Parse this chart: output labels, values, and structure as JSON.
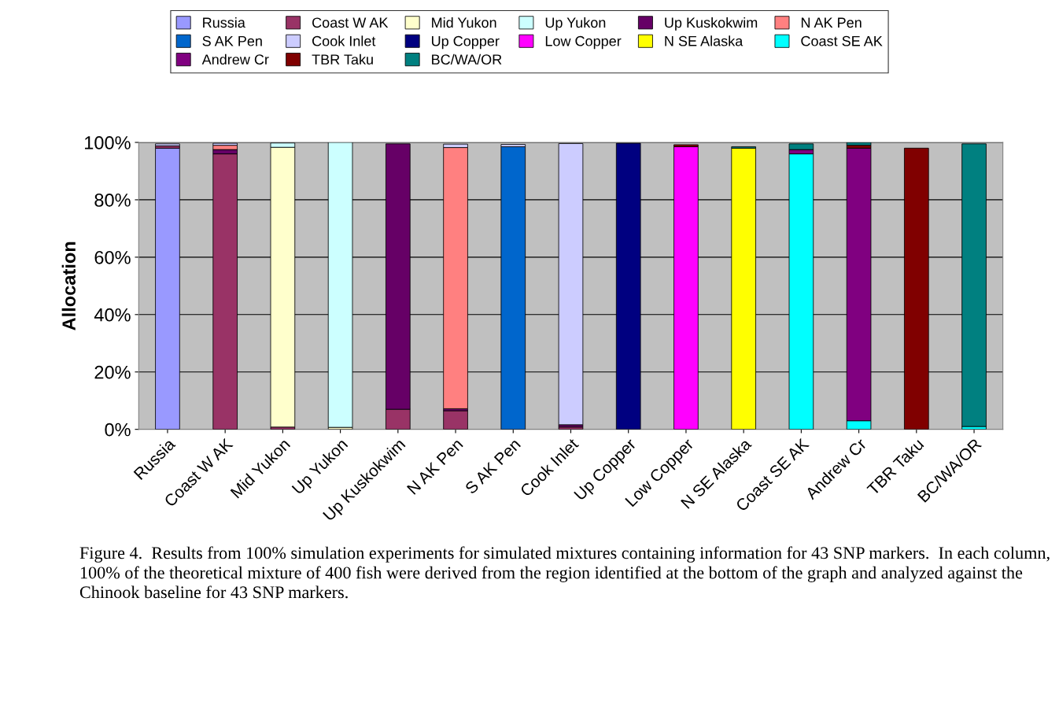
{
  "chart_data": {
    "type": "bar",
    "stacked": true,
    "ylabel": "Allocation",
    "categories": [
      "Russia",
      "Coast W AK",
      "Mid Yukon",
      "Up Yukon",
      "Up Kuskokwim",
      "N AK Pen",
      "S AK Pen",
      "Cook Inlet",
      "Up Copper",
      "Low Copper",
      "N SE Alaska",
      "Coast SE AK",
      "Andrew Cr",
      "TBR Taku",
      "BC/WA/OR"
    ],
    "series": [
      {
        "name": "Russia",
        "color": "#9999ff",
        "values": [
          98,
          0,
          0,
          0,
          0,
          0,
          0,
          0,
          0,
          0,
          0,
          0,
          0,
          0,
          0
        ]
      },
      {
        "name": "Coast W AK",
        "color": "#993366",
        "values": [
          0.8,
          96,
          0.8,
          0,
          7,
          6.5,
          0,
          0.8,
          0,
          0,
          0,
          0,
          0,
          0,
          0
        ]
      },
      {
        "name": "Mid Yukon",
        "color": "#ffffcc",
        "values": [
          0,
          0,
          97.5,
          0.7,
          0,
          0,
          0,
          0,
          0,
          0,
          0,
          0,
          0,
          0,
          0
        ]
      },
      {
        "name": "Up Yukon",
        "color": "#ccffff",
        "values": [
          0,
          0,
          1.5,
          99.3,
          0,
          0,
          0,
          0,
          0,
          0,
          0,
          0,
          0,
          0,
          0
        ]
      },
      {
        "name": "Up Kuskokwim",
        "color": "#660066",
        "values": [
          0,
          1.5,
          0,
          0,
          92.5,
          0.7,
          0,
          0.8,
          0,
          0,
          0,
          0,
          0,
          0,
          0
        ]
      },
      {
        "name": "N AK Pen",
        "color": "#ff8080",
        "values": [
          0,
          1.5,
          0,
          0,
          0,
          91,
          0,
          0,
          0,
          0,
          0,
          0,
          0,
          0,
          0
        ]
      },
      {
        "name": "S AK Pen",
        "color": "#0066cc",
        "values": [
          0,
          0,
          0,
          0,
          0,
          0,
          98.5,
          0,
          0,
          0,
          0,
          0,
          0,
          0,
          0
        ]
      },
      {
        "name": "Cook Inlet",
        "color": "#ccccff",
        "values": [
          0.7,
          0.7,
          0,
          0,
          0,
          1.2,
          0.8,
          98,
          0,
          0,
          0,
          0,
          0,
          0,
          0
        ]
      },
      {
        "name": "Up Copper",
        "color": "#000080",
        "values": [
          0,
          0,
          0,
          0,
          0,
          0,
          0,
          0,
          99.7,
          0,
          0,
          0,
          0,
          0,
          0
        ]
      },
      {
        "name": "Low Copper",
        "color": "#ff00ff",
        "values": [
          0,
          0,
          0,
          0,
          0,
          0,
          0,
          0,
          0,
          98.5,
          0,
          0,
          0,
          0,
          0
        ]
      },
      {
        "name": "N SE Alaska",
        "color": "#ffff00",
        "values": [
          0,
          0,
          0,
          0,
          0,
          0,
          0,
          0,
          0,
          0,
          98,
          0,
          0,
          0,
          0
        ]
      },
      {
        "name": "Coast SE AK",
        "color": "#00ffff",
        "values": [
          0,
          0,
          0,
          0,
          0,
          0,
          0,
          0,
          0,
          0,
          0,
          96,
          3,
          0,
          1
        ]
      },
      {
        "name": "Andrew Cr",
        "color": "#800080",
        "values": [
          0,
          0,
          0,
          0,
          0,
          0,
          0,
          0,
          0,
          0,
          0,
          1.5,
          95,
          0,
          0
        ]
      },
      {
        "name": "TBR Taku",
        "color": "#800000",
        "values": [
          0,
          0,
          0,
          0,
          0,
          0,
          0,
          0,
          0,
          0.7,
          0,
          0,
          1,
          98,
          0
        ]
      },
      {
        "name": "BC/WA/OR",
        "color": "#008080",
        "values": [
          0,
          0,
          0,
          0,
          0,
          0,
          0,
          0,
          0,
          0,
          0.5,
          2,
          1,
          0,
          98.5
        ]
      }
    ],
    "ylim": [
      0,
      100
    ],
    "yticks": [
      {
        "value": 0,
        "label": "0%"
      },
      {
        "value": 20,
        "label": "20%"
      },
      {
        "value": 40,
        "label": "40%"
      },
      {
        "value": 60,
        "label": "60%"
      },
      {
        "value": 80,
        "label": "80%"
      },
      {
        "value": 100,
        "label": "100%"
      }
    ],
    "grid": "y",
    "legend": "top",
    "annotations": [
      "Figure 4.  Results from 100% simulation experiments for simulated mixtures containing information for 43 SNP markers.  In each column, 100% of the theoretical mixture of 400 fish were derived from the region identified at the bottom of the graph and analyzed against the Chinook baseline for 43 SNP markers."
    ]
  }
}
